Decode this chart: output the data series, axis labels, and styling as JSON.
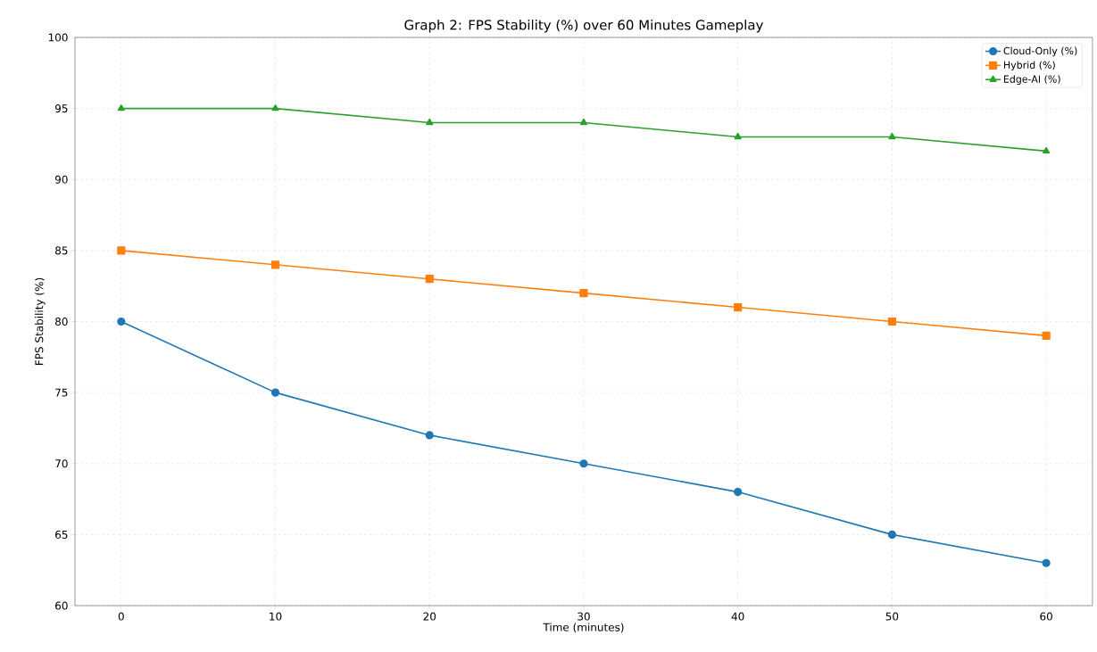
{
  "chart_data": {
    "type": "line",
    "title": "Graph 2: FPS Stability (%) over 60 Minutes Gameplay",
    "xlabel": "Time (minutes)",
    "ylabel": "FPS Stability (%)",
    "x": [
      0,
      10,
      20,
      30,
      40,
      50,
      60
    ],
    "series": [
      {
        "name": "Cloud-Only (%)",
        "color": "#1f77b4",
        "marker": "circle",
        "values": [
          80,
          75,
          72,
          70,
          68,
          65,
          63
        ]
      },
      {
        "name": "Hybrid (%)",
        "color": "#ff7f0e",
        "marker": "square",
        "values": [
          85,
          84,
          83,
          82,
          81,
          80,
          79
        ]
      },
      {
        "name": "Edge-AI (%)",
        "color": "#2ca02c",
        "marker": "triangle",
        "values": [
          95,
          95,
          94,
          94,
          93,
          93,
          92
        ]
      }
    ],
    "xlim": [
      -3,
      63
    ],
    "ylim": [
      60,
      100
    ],
    "xticks": [
      0,
      10,
      20,
      30,
      40,
      50,
      60
    ],
    "yticks": [
      60,
      65,
      70,
      75,
      80,
      85,
      90,
      95,
      100
    ],
    "grid": true,
    "legend": "top right",
    "line_style": "solid"
  }
}
